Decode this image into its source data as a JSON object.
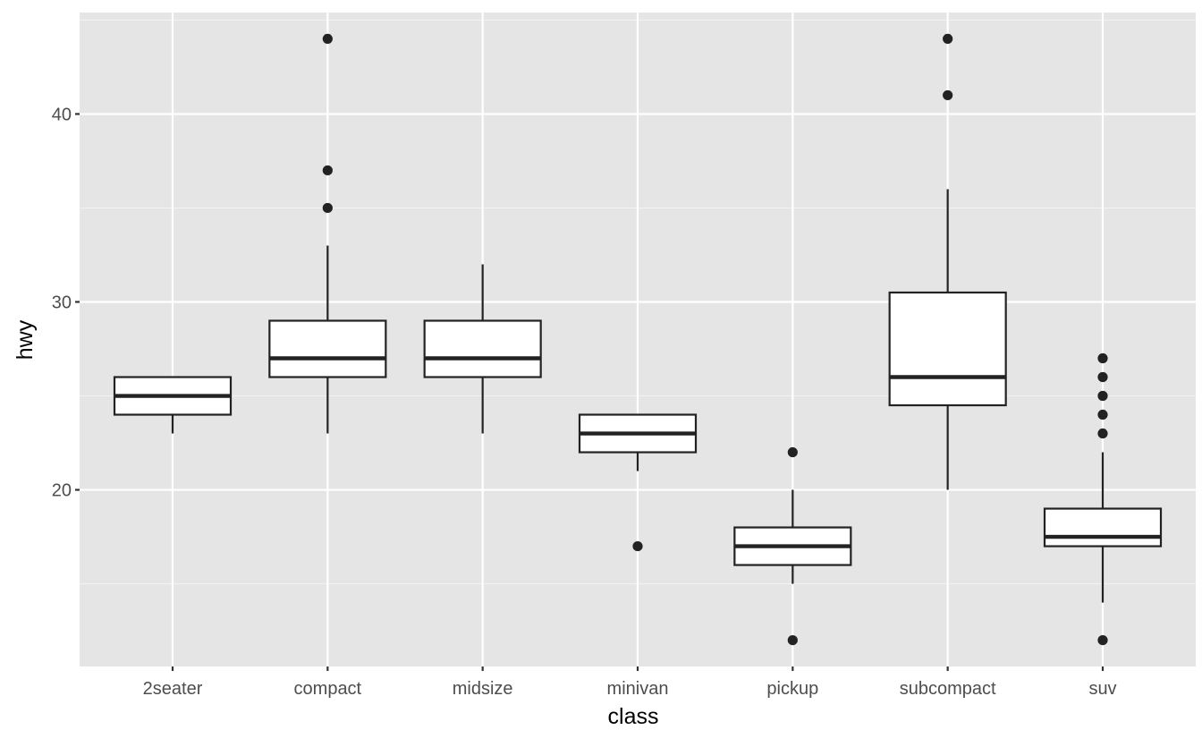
{
  "chart_data": {
    "type": "boxplot",
    "title": "",
    "xlabel": "class",
    "ylabel": "hwy",
    "ylim": [
      10.6,
      45.4
    ],
    "yticks": [
      20,
      30,
      40
    ],
    "ytick_labels": [
      "20",
      "30",
      "40"
    ],
    "grid": true,
    "legend": "none",
    "colors": {
      "panel_background": "#e5e5e5",
      "grid_major": "#ffffff",
      "grid_minor": "#f2f2f2",
      "box_fill": "#ffffff",
      "box_line": "#222222",
      "outlier": "#222222",
      "tick_text": "#4d4d4d",
      "axis_title": "#000000"
    },
    "categories": [
      "2seater",
      "compact",
      "midsize",
      "minivan",
      "pickup",
      "subcompact",
      "suv"
    ],
    "boxes": [
      {
        "category": "2seater",
        "lower_whisker": 23,
        "q1": 24,
        "median": 25,
        "q3": 26,
        "upper_whisker": 26,
        "outliers": []
      },
      {
        "category": "compact",
        "lower_whisker": 23,
        "q1": 26,
        "median": 27,
        "q3": 29,
        "upper_whisker": 33,
        "outliers": [
          35,
          37,
          44
        ]
      },
      {
        "category": "midsize",
        "lower_whisker": 23,
        "q1": 26,
        "median": 27,
        "q3": 29,
        "upper_whisker": 32,
        "outliers": []
      },
      {
        "category": "minivan",
        "lower_whisker": 21,
        "q1": 22,
        "median": 23,
        "q3": 24,
        "upper_whisker": 24,
        "outliers": [
          17
        ]
      },
      {
        "category": "pickup",
        "lower_whisker": 15,
        "q1": 16,
        "median": 17,
        "q3": 18,
        "upper_whisker": 20,
        "outliers": [
          12,
          22
        ]
      },
      {
        "category": "subcompact",
        "lower_whisker": 20,
        "q1": 24.5,
        "median": 26,
        "q3": 30.5,
        "upper_whisker": 36,
        "outliers": [
          41,
          44
        ]
      },
      {
        "category": "suv",
        "lower_whisker": 14,
        "q1": 17,
        "median": 17.5,
        "q3": 19,
        "upper_whisker": 22,
        "outliers": [
          12,
          23,
          24,
          25,
          26,
          27
        ]
      }
    ]
  }
}
